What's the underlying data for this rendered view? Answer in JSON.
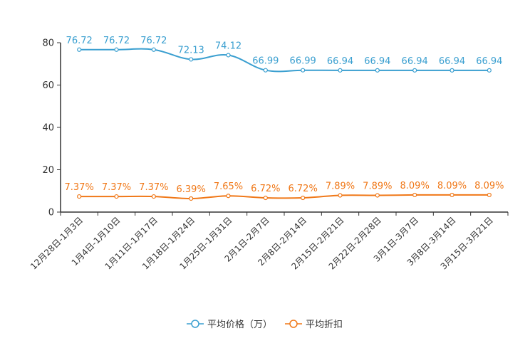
{
  "chart_data": {
    "type": "line",
    "title": "",
    "xlabel": "",
    "ylabel": "",
    "ylim": [
      0,
      80
    ],
    "yticks": [
      0,
      20,
      40,
      60,
      80
    ],
    "grid": false,
    "legend_position": "bottom-center",
    "categories": [
      "12月28日-1月3日",
      "1月4日-1月10日",
      "1月11日-1月17日",
      "1月18日-1月24日",
      "1月25日-1月31日",
      "2月1日-2月7日",
      "2月8日-2月14日",
      "2月15日-2月21日",
      "2月22日-2月28日",
      "3月1日-3月7日",
      "3月8日-3月14日",
      "3月15日-3月21日"
    ],
    "series": [
      {
        "name": "平均价格（万）",
        "color": "#3a9fd0",
        "values": [
          76.72,
          76.72,
          76.72,
          72.13,
          74.12,
          66.99,
          66.99,
          66.94,
          66.94,
          66.94,
          66.94,
          66.94
        ],
        "labels": [
          "76.72",
          "76.72",
          "76.72",
          "72.13",
          "74.12",
          "66.99",
          "66.99",
          "66.94",
          "66.94",
          "66.94",
          "66.94",
          "66.94"
        ]
      },
      {
        "name": "平均折扣",
        "color": "#f07818",
        "values": [
          7.37,
          7.37,
          7.37,
          6.39,
          7.65,
          6.72,
          6.72,
          7.89,
          7.89,
          8.09,
          8.09,
          8.09
        ],
        "labels": [
          "7.37%",
          "7.37%",
          "7.37%",
          "6.39%",
          "7.65%",
          "6.72%",
          "6.72%",
          "7.89%",
          "7.89%",
          "8.09%",
          "8.09%",
          "8.09%"
        ]
      }
    ]
  }
}
